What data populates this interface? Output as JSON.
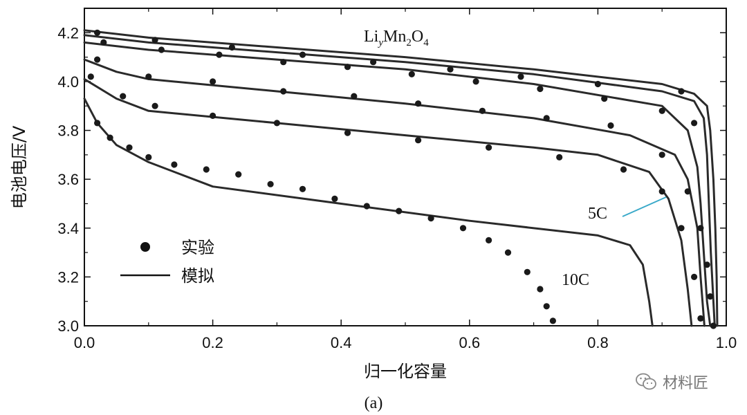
{
  "chart_data": {
    "type": "line",
    "title": "LiyMn2O4",
    "title_parts": {
      "base1": "Li",
      "sub1": "y",
      "base2": "Mn",
      "sub2": "2",
      "base3": "O",
      "sub3": "4"
    },
    "xlabel": "归一化容量",
    "ylabel": "电池电压/V",
    "xlim": [
      0.0,
      1.0
    ],
    "ylim": [
      3.0,
      4.3
    ],
    "xticks": [
      "0.0",
      "0.2",
      "0.4",
      "0.6",
      "0.8",
      "1.0"
    ],
    "yticks": [
      "3.0",
      "3.2",
      "3.4",
      "3.6",
      "3.8",
      "4.0",
      "4.2"
    ],
    "grid": false,
    "legend": {
      "position": "bottom-left",
      "experiment_label": "实验",
      "simulation_label": "模拟"
    },
    "annotations": {
      "rate_5c": "5C",
      "rate_10c": "10C"
    },
    "panel_label": "(a)",
    "simulated_series": [
      {
        "x": [
          0.0,
          0.1,
          0.3,
          0.5,
          0.7,
          0.9,
          0.95,
          0.97,
          0.975,
          0.98,
          0.983,
          0.985,
          0.986
        ],
        "y": [
          4.21,
          4.18,
          4.14,
          4.1,
          4.05,
          3.99,
          3.95,
          3.9,
          3.8,
          3.6,
          3.4,
          3.2,
          3.0
        ]
      },
      {
        "x": [
          0.0,
          0.1,
          0.3,
          0.5,
          0.7,
          0.9,
          0.95,
          0.965,
          0.97,
          0.973,
          0.976,
          0.979,
          0.982
        ],
        "y": [
          4.19,
          4.16,
          4.12,
          4.08,
          4.03,
          3.96,
          3.92,
          3.85,
          3.7,
          3.5,
          3.3,
          3.15,
          3.0
        ]
      },
      {
        "x": [
          0.0,
          0.1,
          0.3,
          0.5,
          0.7,
          0.9,
          0.94,
          0.955,
          0.96,
          0.965,
          0.97,
          0.975
        ],
        "y": [
          4.16,
          4.13,
          4.09,
          4.05,
          3.99,
          3.9,
          3.8,
          3.65,
          3.5,
          3.3,
          3.1,
          3.0
        ]
      },
      {
        "x": [
          0.0,
          0.05,
          0.1,
          0.3,
          0.5,
          0.7,
          0.85,
          0.92,
          0.94,
          0.955,
          0.96,
          0.966
        ],
        "y": [
          4.09,
          4.04,
          4.01,
          3.96,
          3.91,
          3.85,
          3.78,
          3.7,
          3.6,
          3.4,
          3.2,
          3.0
        ]
      },
      {
        "x": [
          0.0,
          0.05,
          0.1,
          0.3,
          0.5,
          0.7,
          0.8,
          0.88,
          0.91,
          0.93,
          0.94,
          0.946
        ],
        "y": [
          4.01,
          3.93,
          3.88,
          3.83,
          3.78,
          3.73,
          3.7,
          3.63,
          3.52,
          3.35,
          3.15,
          3.0
        ]
      },
      {
        "x": [
          0.0,
          0.02,
          0.05,
          0.1,
          0.2,
          0.4,
          0.6,
          0.8,
          0.85,
          0.87,
          0.88,
          0.885
        ],
        "y": [
          3.93,
          3.83,
          3.74,
          3.67,
          3.57,
          3.5,
          3.43,
          3.37,
          3.33,
          3.25,
          3.1,
          3.0
        ]
      }
    ],
    "experimental_series": [
      {
        "x": [
          0.02,
          0.11,
          0.23,
          0.34,
          0.45,
          0.57,
          0.68,
          0.8,
          0.93
        ],
        "y": [
          4.2,
          4.17,
          4.14,
          4.11,
          4.08,
          4.05,
          4.02,
          3.99,
          3.96
        ]
      },
      {
        "x": [
          0.03,
          0.12,
          0.21,
          0.31,
          0.41,
          0.51,
          0.61,
          0.71,
          0.81,
          0.9,
          0.95
        ],
        "y": [
          4.16,
          4.13,
          4.11,
          4.08,
          4.06,
          4.03,
          4.0,
          3.97,
          3.93,
          3.88,
          3.83
        ]
      },
      {
        "x": [
          0.02,
          0.1,
          0.2,
          0.31,
          0.42,
          0.52,
          0.62,
          0.72,
          0.82,
          0.9,
          0.94,
          0.96,
          0.97,
          0.975,
          0.98
        ],
        "y": [
          4.09,
          4.02,
          4.0,
          3.96,
          3.94,
          3.91,
          3.88,
          3.85,
          3.82,
          3.7,
          3.55,
          3.4,
          3.25,
          3.12,
          3.0
        ]
      },
      {
        "x": [
          0.01,
          0.06,
          0.11,
          0.2,
          0.3,
          0.41,
          0.52,
          0.63,
          0.74,
          0.84,
          0.9,
          0.93,
          0.95,
          0.96
        ],
        "y": [
          4.02,
          3.94,
          3.9,
          3.86,
          3.83,
          3.79,
          3.76,
          3.73,
          3.69,
          3.64,
          3.55,
          3.4,
          3.2,
          3.03
        ]
      },
      {
        "x": [
          0.02,
          0.04,
          0.07,
          0.1,
          0.14,
          0.19,
          0.24,
          0.29,
          0.34,
          0.39,
          0.44,
          0.49,
          0.54,
          0.59,
          0.63,
          0.66,
          0.69,
          0.71,
          0.72,
          0.73
        ],
        "y": [
          3.83,
          3.77,
          3.73,
          3.69,
          3.66,
          3.64,
          3.62,
          3.58,
          3.56,
          3.52,
          3.49,
          3.47,
          3.44,
          3.4,
          3.35,
          3.3,
          3.22,
          3.15,
          3.08,
          3.02
        ]
      }
    ]
  },
  "watermark": {
    "text": "材料匠",
    "icon": "wechat-icon"
  },
  "colors": {
    "line": "#2a2a2a",
    "dot": "#1a1a1a",
    "annotation_line": "#3aa9c9",
    "axis": "#111111"
  }
}
